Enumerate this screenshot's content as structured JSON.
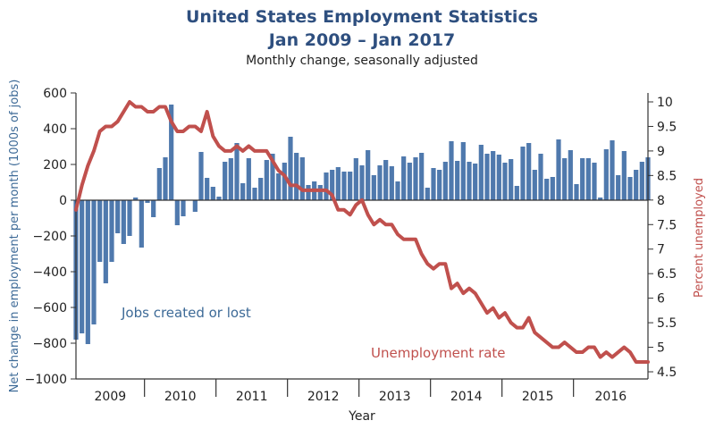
{
  "chart_data": {
    "type": "bar",
    "title_line1": "United States Employment Statistics",
    "title_line2": "Jan 2009 – Jan 2017",
    "subtitle": "Monthly change, seasonally adjusted",
    "xlabel": "Year",
    "ylabel_left": "Net change in employment per month (1000s of jobs)",
    "ylabel_right": "Percent unemployed",
    "ylim_left": [
      -1000,
      600
    ],
    "ylim_right": [
      4.5,
      10
    ],
    "yticks_left": [
      "600",
      "400",
      "200",
      "0",
      "−200",
      "−400",
      "−600",
      "−800",
      "−1000"
    ],
    "yticks_right": [
      "10",
      "9.5",
      "9",
      "8.5",
      "8",
      "7.5",
      "7",
      "6.5",
      "6",
      "5.5",
      "5",
      "4.5"
    ],
    "year_labels": [
      "2009",
      "2010",
      "2011",
      "2012",
      "2013",
      "2014",
      "2015",
      "2016"
    ],
    "annotations": {
      "jobs": "Jobs created or lost",
      "unemployment": "Unemployment rate"
    },
    "colors": {
      "bars": "#4f79ad",
      "line": "#c0504d",
      "title": "#2e4f7f"
    },
    "series": [
      {
        "name": "Jobs created or lost",
        "type": "bar",
        "values": [
          -780,
          -745,
          -805,
          -695,
          -345,
          -465,
          -345,
          -185,
          -245,
          -200,
          15,
          -265,
          -15,
          -95,
          180,
          240,
          535,
          -140,
          -90,
          0,
          -65,
          270,
          125,
          75,
          20,
          215,
          235,
          320,
          95,
          235,
          70,
          125,
          225,
          260,
          150,
          210,
          355,
          265,
          240,
          85,
          105,
          85,
          155,
          170,
          185,
          160,
          160,
          235,
          195,
          280,
          140,
          195,
          225,
          190,
          105,
          245,
          210,
          240,
          265,
          70,
          180,
          170,
          215,
          330,
          220,
          325,
          215,
          205,
          310,
          260,
          275,
          255,
          210,
          230,
          80,
          300,
          320,
          170,
          260,
          120,
          130,
          340,
          235,
          280,
          90,
          235,
          235,
          210,
          15,
          285,
          335,
          140,
          275,
          130,
          170,
          215,
          240
        ]
      },
      {
        "name": "Unemployment rate",
        "type": "line",
        "values": [
          7.8,
          8.3,
          8.7,
          9.0,
          9.4,
          9.5,
          9.5,
          9.6,
          9.8,
          10.0,
          9.9,
          9.9,
          9.8,
          9.8,
          9.9,
          9.9,
          9.6,
          9.4,
          9.4,
          9.5,
          9.5,
          9.4,
          9.8,
          9.3,
          9.1,
          9.0,
          9.0,
          9.1,
          9.0,
          9.1,
          9.0,
          9.0,
          9.0,
          8.8,
          8.6,
          8.5,
          8.3,
          8.3,
          8.2,
          8.2,
          8.2,
          8.2,
          8.2,
          8.1,
          7.8,
          7.8,
          7.7,
          7.9,
          8.0,
          7.7,
          7.5,
          7.6,
          7.5,
          7.5,
          7.3,
          7.2,
          7.2,
          7.2,
          6.9,
          6.7,
          6.6,
          6.7,
          6.7,
          6.2,
          6.3,
          6.1,
          6.2,
          6.1,
          5.9,
          5.7,
          5.8,
          5.6,
          5.7,
          5.5,
          5.4,
          5.4,
          5.6,
          5.3,
          5.2,
          5.1,
          5.0,
          5.0,
          5.1,
          5.0,
          4.9,
          4.9,
          5.0,
          5.0,
          4.8,
          4.9,
          4.8,
          4.9,
          5.0,
          4.9,
          4.7,
          4.7,
          4.7
        ]
      }
    ]
  }
}
